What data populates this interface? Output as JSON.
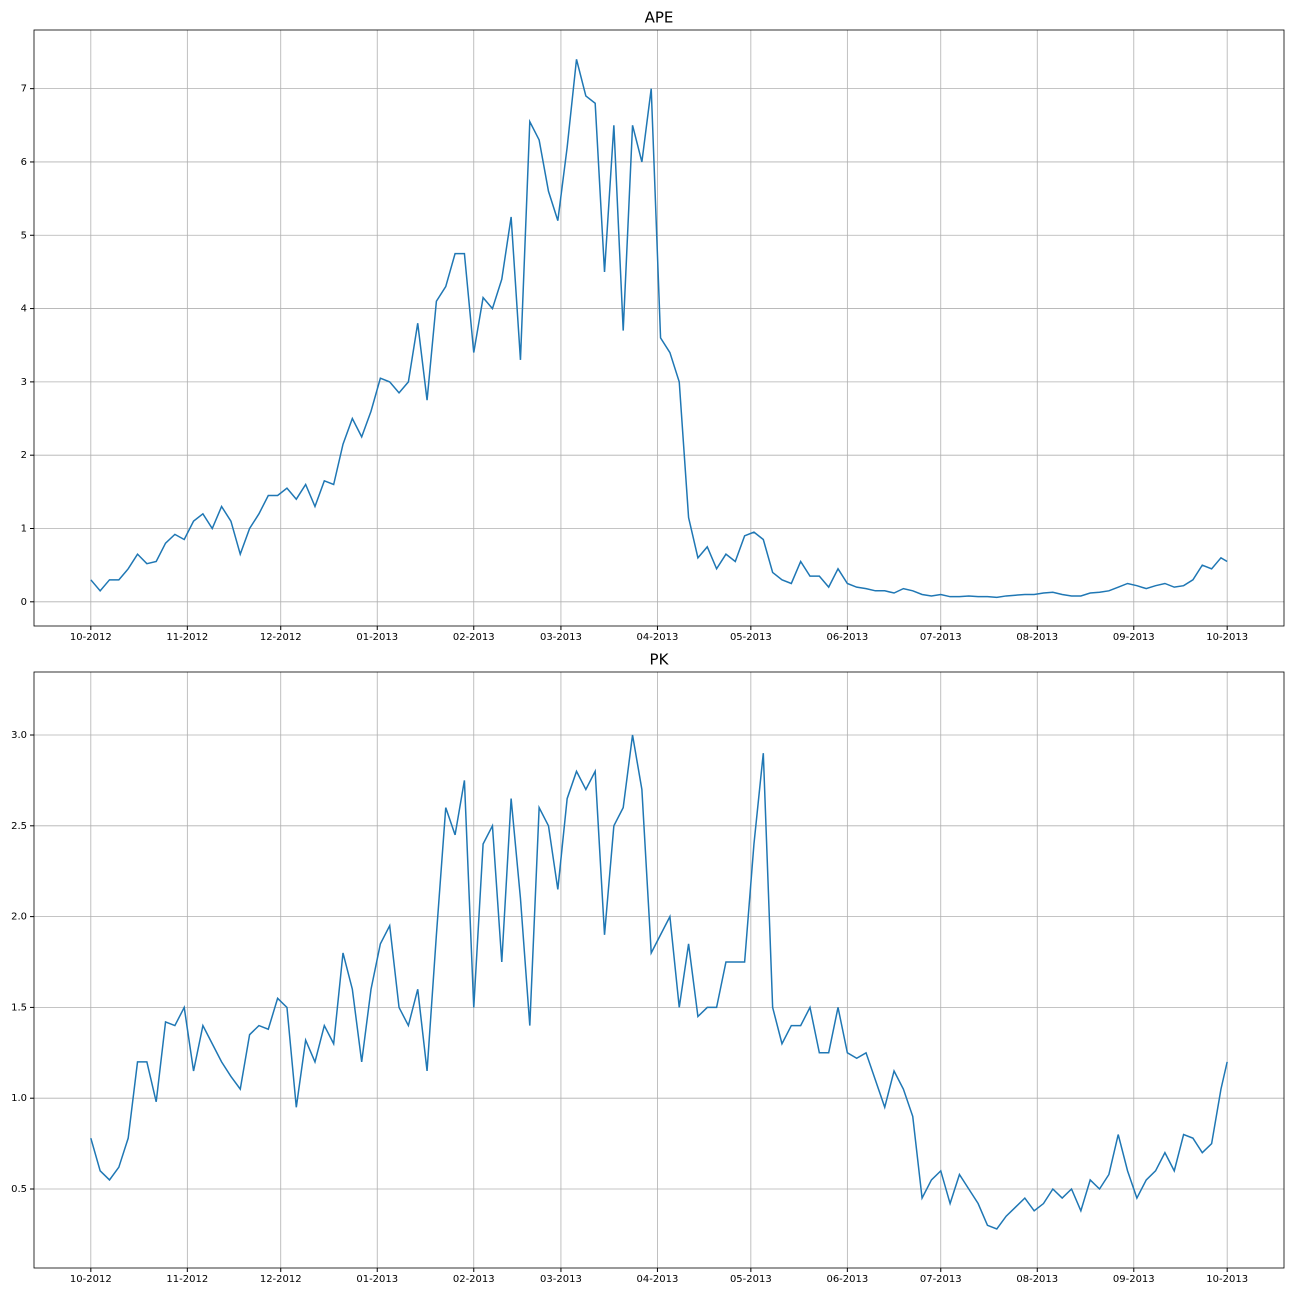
{
  "chart_data": [
    {
      "type": "line",
      "title": "APE",
      "color": "#1f77b4",
      "grid": true,
      "x": [
        0,
        3,
        6,
        9,
        12,
        15,
        18,
        21,
        24,
        27,
        30,
        33,
        36,
        39,
        42,
        45,
        48,
        51,
        54,
        57,
        60,
        63,
        66,
        69,
        72,
        75,
        78,
        81,
        84,
        87,
        90,
        93,
        96,
        99,
        102,
        105,
        108,
        111,
        114,
        117,
        120,
        123,
        126,
        129,
        132,
        135,
        138,
        141,
        144,
        147,
        150,
        153,
        156,
        159,
        162,
        165,
        168,
        171,
        174,
        177,
        180,
        183,
        186,
        189,
        192,
        195,
        198,
        201,
        204,
        207,
        210,
        213,
        216,
        219,
        222,
        225,
        228,
        231,
        234,
        237,
        240,
        243,
        246,
        249,
        252,
        255,
        258,
        261,
        264,
        267,
        270,
        273,
        276,
        279,
        282,
        285,
        288,
        291,
        294,
        297,
        300,
        303,
        306,
        309,
        312,
        315,
        318,
        321,
        324,
        327,
        330,
        333,
        336,
        339,
        342,
        345,
        348,
        351,
        354,
        357,
        360,
        363,
        365
      ],
      "values": [
        0.3,
        0.15,
        0.3,
        0.3,
        0.45,
        0.65,
        0.52,
        0.55,
        0.8,
        0.92,
        0.85,
        1.1,
        1.2,
        1.0,
        1.3,
        1.1,
        0.65,
        1.0,
        1.2,
        1.45,
        1.45,
        1.55,
        1.4,
        1.6,
        1.3,
        1.65,
        1.6,
        2.15,
        2.5,
        2.25,
        2.6,
        3.05,
        3.0,
        2.85,
        3.0,
        3.8,
        2.75,
        4.1,
        4.3,
        4.75,
        4.75,
        3.4,
        4.15,
        4.0,
        4.4,
        5.25,
        3.3,
        6.55,
        6.3,
        5.6,
        5.2,
        6.2,
        7.4,
        6.9,
        6.8,
        4.5,
        6.5,
        3.7,
        6.5,
        6.0,
        7.0,
        3.6,
        3.4,
        3.0,
        1.15,
        0.6,
        0.75,
        0.45,
        0.65,
        0.55,
        0.9,
        0.95,
        0.85,
        0.4,
        0.3,
        0.25,
        0.55,
        0.35,
        0.35,
        0.2,
        0.45,
        0.25,
        0.2,
        0.18,
        0.15,
        0.15,
        0.12,
        0.18,
        0.15,
        0.1,
        0.08,
        0.1,
        0.07,
        0.07,
        0.08,
        0.07,
        0.07,
        0.06,
        0.08,
        0.09,
        0.1,
        0.1,
        0.12,
        0.13,
        0.1,
        0.08,
        0.08,
        0.12,
        0.13,
        0.15,
        0.2,
        0.25,
        0.22,
        0.18,
        0.22,
        0.25,
        0.2,
        0.22,
        0.3,
        0.5,
        0.45,
        0.6,
        0.55
      ],
      "xlim": [
        -18.25,
        383.25
      ],
      "xticks": [
        {
          "value": 0,
          "label": "10-2012"
        },
        {
          "value": 31,
          "label": "11-2012"
        },
        {
          "value": 61,
          "label": "12-2012"
        },
        {
          "value": 92,
          "label": "01-2013"
        },
        {
          "value": 123,
          "label": "02-2013"
        },
        {
          "value": 151,
          "label": "03-2013"
        },
        {
          "value": 182,
          "label": "04-2013"
        },
        {
          "value": 212,
          "label": "05-2013"
        },
        {
          "value": 243,
          "label": "06-2013"
        },
        {
          "value": 273,
          "label": "07-2013"
        },
        {
          "value": 304,
          "label": "08-2013"
        },
        {
          "value": 335,
          "label": "09-2013"
        },
        {
          "value": 365,
          "label": "10-2013"
        }
      ],
      "ylim": [
        -0.33,
        7.8
      ],
      "yticks": [
        0,
        1,
        2,
        3,
        4,
        5,
        6,
        7
      ]
    },
    {
      "type": "line",
      "title": "PK",
      "color": "#1f77b4",
      "grid": true,
      "x": [
        0,
        3,
        6,
        9,
        12,
        15,
        18,
        21,
        24,
        27,
        30,
        33,
        36,
        39,
        42,
        45,
        48,
        51,
        54,
        57,
        60,
        63,
        66,
        69,
        72,
        75,
        78,
        81,
        84,
        87,
        90,
        93,
        96,
        99,
        102,
        105,
        108,
        111,
        114,
        117,
        120,
        123,
        126,
        129,
        132,
        135,
        138,
        141,
        144,
        147,
        150,
        153,
        156,
        159,
        162,
        165,
        168,
        171,
        174,
        177,
        180,
        183,
        186,
        189,
        192,
        195,
        198,
        201,
        204,
        207,
        210,
        213,
        216,
        219,
        222,
        225,
        228,
        231,
        234,
        237,
        240,
        243,
        246,
        249,
        252,
        255,
        258,
        261,
        264,
        267,
        270,
        273,
        276,
        279,
        282,
        285,
        288,
        291,
        294,
        297,
        300,
        303,
        306,
        309,
        312,
        315,
        318,
        321,
        324,
        327,
        330,
        333,
        336,
        339,
        342,
        345,
        348,
        351,
        354,
        357,
        360,
        363,
        365
      ],
      "values": [
        0.78,
        0.6,
        0.55,
        0.62,
        0.78,
        1.2,
        1.2,
        0.98,
        1.42,
        1.4,
        1.5,
        1.15,
        1.4,
        1.3,
        1.2,
        1.12,
        1.05,
        1.35,
        1.4,
        1.38,
        1.55,
        1.5,
        0.95,
        1.32,
        1.2,
        1.4,
        1.3,
        1.8,
        1.6,
        1.2,
        1.6,
        1.85,
        1.95,
        1.5,
        1.4,
        1.6,
        1.15,
        1.9,
        2.6,
        2.45,
        2.75,
        1.5,
        2.4,
        2.5,
        1.75,
        2.65,
        2.1,
        1.4,
        2.6,
        2.5,
        2.15,
        2.65,
        2.8,
        2.7,
        2.8,
        1.9,
        2.5,
        2.6,
        3.0,
        2.7,
        1.8,
        1.9,
        2.0,
        1.5,
        1.85,
        1.45,
        1.5,
        1.5,
        1.75,
        1.75,
        1.75,
        2.4,
        2.9,
        1.5,
        1.3,
        1.4,
        1.4,
        1.5,
        1.25,
        1.25,
        1.5,
        1.25,
        1.22,
        1.25,
        1.1,
        0.95,
        1.15,
        1.05,
        0.9,
        0.45,
        0.55,
        0.6,
        0.42,
        0.58,
        0.5,
        0.42,
        0.3,
        0.28,
        0.35,
        0.4,
        0.45,
        0.38,
        0.42,
        0.5,
        0.45,
        0.5,
        0.38,
        0.55,
        0.5,
        0.58,
        0.8,
        0.6,
        0.45,
        0.55,
        0.6,
        0.7,
        0.6,
        0.8,
        0.78,
        0.7,
        0.75,
        1.05,
        1.2
      ],
      "xlim": [
        -18.25,
        383.25
      ],
      "xticks": [
        {
          "value": 0,
          "label": "10-2012"
        },
        {
          "value": 31,
          "label": "11-2012"
        },
        {
          "value": 61,
          "label": "12-2012"
        },
        {
          "value": 92,
          "label": "01-2013"
        },
        {
          "value": 123,
          "label": "02-2013"
        },
        {
          "value": 151,
          "label": "03-2013"
        },
        {
          "value": 182,
          "label": "04-2013"
        },
        {
          "value": 212,
          "label": "05-2013"
        },
        {
          "value": 243,
          "label": "06-2013"
        },
        {
          "value": 273,
          "label": "07-2013"
        },
        {
          "value": 304,
          "label": "08-2013"
        },
        {
          "value": 335,
          "label": "09-2013"
        },
        {
          "value": 365,
          "label": "10-2013"
        }
      ],
      "ylim": [
        0.065,
        3.347
      ],
      "yticks": [
        0.5,
        {
          "value": 1,
          "label": "1.0"
        },
        1.5,
        {
          "value": 2,
          "label": "2.0"
        },
        2.5,
        {
          "value": 3,
          "label": "3.0"
        }
      ]
    }
  ]
}
